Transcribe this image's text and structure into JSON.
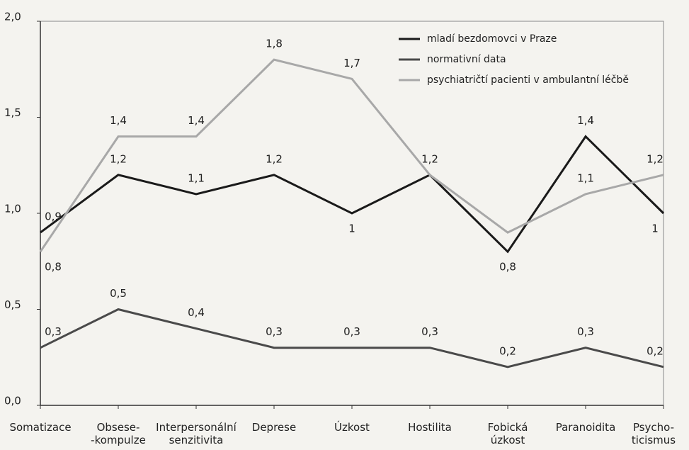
{
  "chart_data": {
    "type": "line",
    "categories": [
      "Somatizace",
      "Obsese-\n-kompulze",
      "Interpersonální\nsenzitivita",
      "Deprese",
      "Úzkost",
      "Hostilita",
      "Fobická\núzkost",
      "Paranoidita",
      "Psycho-\nticismus"
    ],
    "series": [
      {
        "name": "mladí bezdomovci v Praze",
        "color": "#1a1a1a",
        "values": [
          0.9,
          1.2,
          1.1,
          1.2,
          1.0,
          1.2,
          0.8,
          1.4,
          1.0
        ],
        "value_labels": [
          "0,9",
          "1,2",
          "1,1",
          "1,2",
          "1",
          "1,2",
          "0,8",
          "1,4",
          "1"
        ]
      },
      {
        "name": "normativní data",
        "color": "#4a4a4a",
        "values": [
          0.3,
          0.5,
          0.4,
          0.3,
          0.3,
          0.3,
          0.2,
          0.3,
          0.2
        ],
        "value_labels": [
          "0,3",
          "0,5",
          "0,4",
          "0,3",
          "0,3",
          "0,3",
          "0,2",
          "0,3",
          "0,2"
        ]
      },
      {
        "name": "psychiatričtí pacienti v ambulantní léčbě",
        "color": "#a8a8a8",
        "values": [
          0.8,
          1.4,
          1.4,
          1.8,
          1.7,
          1.2,
          0.9,
          1.1,
          1.2
        ],
        "value_labels": [
          "0,8",
          "1,4",
          "1,4",
          "1,8",
          "1,7",
          null,
          null,
          "1,1",
          "1,2"
        ]
      }
    ],
    "ylim": [
      0,
      2
    ],
    "yticks": [
      {
        "value": 0,
        "label": "0,0"
      },
      {
        "value": 0.5,
        "label": "0,5"
      },
      {
        "value": 1,
        "label": "1,0"
      },
      {
        "value": 1.5,
        "label": "1,5"
      },
      {
        "value": 2,
        "label": "2,0"
      }
    ],
    "grid": false,
    "legend": "upper right"
  }
}
